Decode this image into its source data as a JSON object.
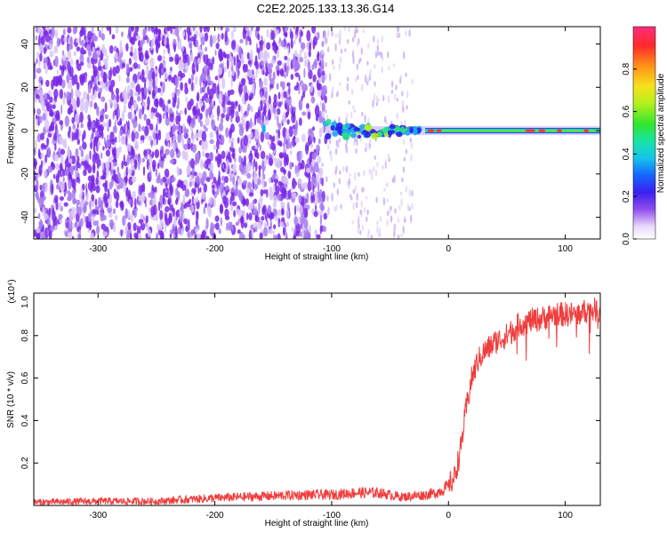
{
  "title": "C2E2.2025.133.13.36.G14",
  "chart_data": [
    {
      "type": "heatmap",
      "title": "C2E2.2025.133.13.36.G14",
      "xlabel": "Height of straight line (km)",
      "ylabel": "Frequency (Hz)",
      "xlim": [
        -355,
        130
      ],
      "ylim": [
        -50,
        48
      ],
      "x_ticks": [
        "-300",
        "-200",
        "-100",
        "0",
        "100"
      ],
      "y_ticks": [
        "-40",
        "-20",
        "0",
        "20",
        "40"
      ],
      "colorbar": {
        "label": "Normalized spectral amplitude",
        "range": [
          0,
          1
        ],
        "ticks": [
          "0.0",
          "0.2",
          "0.4",
          "0.6",
          "0.8"
        ]
      },
      "features": {
        "noise_region_x": [
          -355,
          -105
        ],
        "transition_region_x": [
          -105,
          -30
        ],
        "signal_line_frequency_hz": 0,
        "signal_onset_x": -105
      }
    },
    {
      "type": "line",
      "xlabel": "Height of straight line (km)",
      "ylabel": "SNR (10 * v/v)",
      "y_scale_label": "(x10⁴)",
      "xlim": [
        -355,
        130
      ],
      "ylim": [
        0,
        1.0
      ],
      "x_ticks": [
        "-300",
        "-200",
        "-100",
        "0",
        "100"
      ],
      "y_ticks": [
        "0.2",
        "0.4",
        "0.6",
        "0.8",
        "1.0"
      ],
      "series": [
        {
          "color": "#f03c3c",
          "x": [
            -355,
            -300,
            -250,
            -200,
            -150,
            -120,
            -100,
            -80,
            -60,
            -40,
            -20,
            -10,
            0,
            5,
            10,
            15,
            20,
            25,
            30,
            40,
            50,
            60,
            70,
            80,
            90,
            100,
            110,
            120,
            130
          ],
          "values": [
            0.015,
            0.02,
            0.02,
            0.035,
            0.045,
            0.05,
            0.05,
            0.06,
            0.06,
            0.04,
            0.05,
            0.06,
            0.09,
            0.13,
            0.25,
            0.45,
            0.6,
            0.68,
            0.72,
            0.77,
            0.8,
            0.85,
            0.87,
            0.88,
            0.9,
            0.9,
            0.9,
            0.92,
            0.92
          ]
        }
      ]
    }
  ]
}
